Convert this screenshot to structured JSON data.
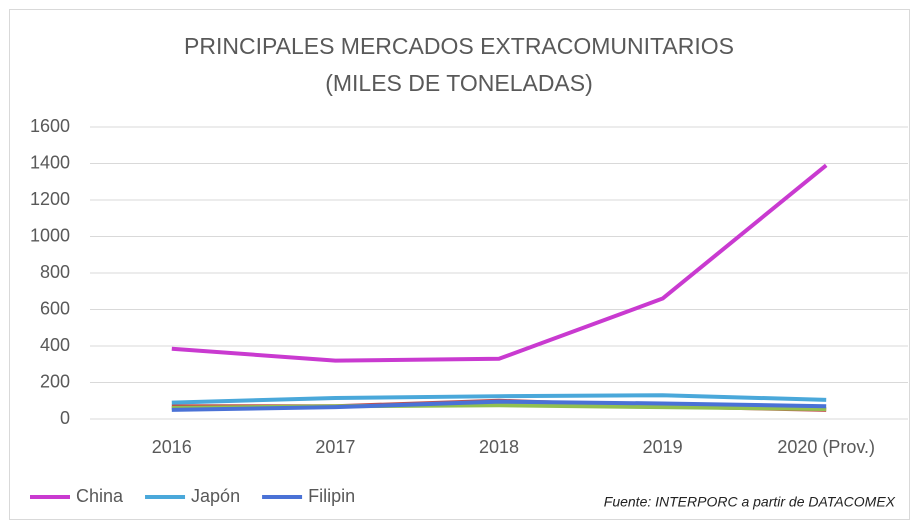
{
  "chart_data": {
    "type": "line",
    "title": "PRINCIPALES MERCADOS EXTRACOMUNITARIOS",
    "subtitle": "(MILES DE TONELADAS)",
    "annotation": "Fuente: INTERPORC  a partir de DATACOMEX",
    "categories": [
      "2016",
      "2017",
      "2018",
      "2019",
      "2020 (Prov.)"
    ],
    "series": [
      {
        "name": "China",
        "color": "#c93ad0",
        "values": [
          385,
          320,
          330,
          660,
          1390
        ]
      },
      {
        "name": "Japón",
        "color": "#4aa8da",
        "values": [
          90,
          115,
          125,
          130,
          105
        ]
      },
      {
        "name": "Filipin",
        "color": "#4a72d6",
        "values": [
          50,
          65,
          95,
          85,
          70
        ]
      },
      {
        "color": "#92c050",
        "values": [
          60,
          70,
          75,
          65,
          55
        ]
      },
      {
        "color": "#c0504d",
        "values": [
          70,
          70,
          100,
          70,
          50
        ]
      }
    ],
    "ylim": [
      0,
      1600
    ],
    "yticks": [
      0,
      200,
      400,
      600,
      800,
      1000,
      1200,
      1400,
      1600
    ],
    "grid": true,
    "legend": "bottom-left"
  }
}
